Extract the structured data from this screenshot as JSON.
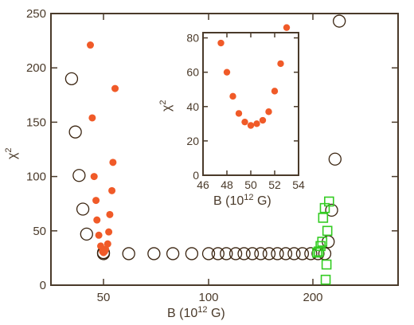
{
  "chart_data": [
    {
      "type": "scatter",
      "xlabel_base": "B (10",
      "xlabel_exp": "12",
      "xlabel_tail": " G)",
      "ylabel_base": "χ",
      "ylabel_exp": "2",
      "xlim": [
        22,
        300
      ],
      "ylim": [
        0,
        250
      ],
      "x_tick_labels": [
        {
          "label": "50",
          "x": 50
        },
        {
          "label": "100",
          "x": 100
        },
        {
          "label": "200",
          "x": 200
        }
      ],
      "y_tick_labels": [
        "0",
        "50",
        "100",
        "150",
        "200",
        "250"
      ],
      "y_ticks": [
        0,
        50,
        100,
        150,
        200,
        250
      ],
      "grid": false,
      "series": [
        {
          "marker": "open-circle",
          "color": "#3a2410",
          "points": [
            [
              33,
              190
            ],
            [
              35,
              141
            ],
            [
              37,
              101
            ],
            [
              39,
              70
            ],
            [
              41,
              47
            ],
            [
              50,
              30
            ],
            [
              50,
              29
            ],
            [
              62,
              29
            ],
            [
              74,
              29
            ],
            [
              83,
              29
            ],
            [
              92,
              29
            ],
            [
              100,
              29
            ],
            [
              109,
              29
            ],
            [
              117,
              29
            ],
            [
              126,
              29
            ],
            [
              134,
              29
            ],
            [
              142,
              29
            ],
            [
              150,
              29
            ],
            [
              158,
              29
            ],
            [
              166,
              29
            ],
            [
              174,
              29
            ],
            [
              182,
              29
            ],
            [
              190,
              29
            ],
            [
              198,
              29
            ],
            [
              206,
              29
            ],
            [
              214,
              29
            ],
            [
              218,
              40
            ],
            [
              222,
              69
            ],
            [
              226,
              116
            ],
            [
              231,
              243
            ]
          ]
        },
        {
          "marker": "filled-circle",
          "color": "#f05a28",
          "points": [
            [
              43,
              221
            ],
            [
              44,
              154
            ],
            [
              45,
              100
            ],
            [
              46,
              78
            ],
            [
              46.5,
              60
            ],
            [
              47.5,
              46
            ],
            [
              48.5,
              36
            ],
            [
              49.5,
              31
            ],
            [
              50,
              30
            ],
            [
              50.5,
              31
            ],
            [
              51,
              33
            ],
            [
              52,
              38
            ],
            [
              52.5,
              49
            ],
            [
              53,
              65
            ],
            [
              54,
              87
            ],
            [
              54.5,
              113
            ],
            [
              55.5,
              181
            ]
          ]
        },
        {
          "marker": "open-square",
          "color": "#33cc22",
          "points": [
            [
              205,
              30
            ],
            [
              207,
              31
            ],
            [
              209,
              36
            ],
            [
              211,
              40
            ],
            [
              212,
              62
            ],
            [
              214,
              71
            ],
            [
              215,
              5
            ],
            [
              216,
              19
            ],
            [
              217,
              50
            ],
            [
              219,
              77
            ]
          ]
        }
      ]
    },
    {
      "type": "scatter",
      "role": "inset",
      "xlabel_base": "B (10",
      "xlabel_exp": "12",
      "xlabel_tail": " G)",
      "ylabel_base": "χ",
      "ylabel_exp": "2",
      "xlim": [
        46,
        54
      ],
      "ylim": [
        0,
        90
      ],
      "x_ticks": [
        46,
        48,
        50,
        52,
        54
      ],
      "x_tick_labels": [
        "46",
        "48",
        "50",
        "52",
        "54"
      ],
      "y_ticks": [
        0,
        20,
        40,
        60,
        80
      ],
      "y_tick_labels": [
        "0",
        "20",
        "40",
        "60",
        "80"
      ],
      "grid": false,
      "series": [
        {
          "marker": "filled-circle",
          "color": "#f05a28",
          "points": [
            [
              47.5,
              77
            ],
            [
              48,
              60
            ],
            [
              48.5,
              46
            ],
            [
              49,
              36
            ],
            [
              49.5,
              31
            ],
            [
              50,
              29
            ],
            [
              50.5,
              30
            ],
            [
              51,
              32
            ],
            [
              51.5,
              37
            ],
            [
              52,
              49
            ],
            [
              52.5,
              65
            ],
            [
              53,
              86
            ]
          ]
        }
      ]
    }
  ]
}
